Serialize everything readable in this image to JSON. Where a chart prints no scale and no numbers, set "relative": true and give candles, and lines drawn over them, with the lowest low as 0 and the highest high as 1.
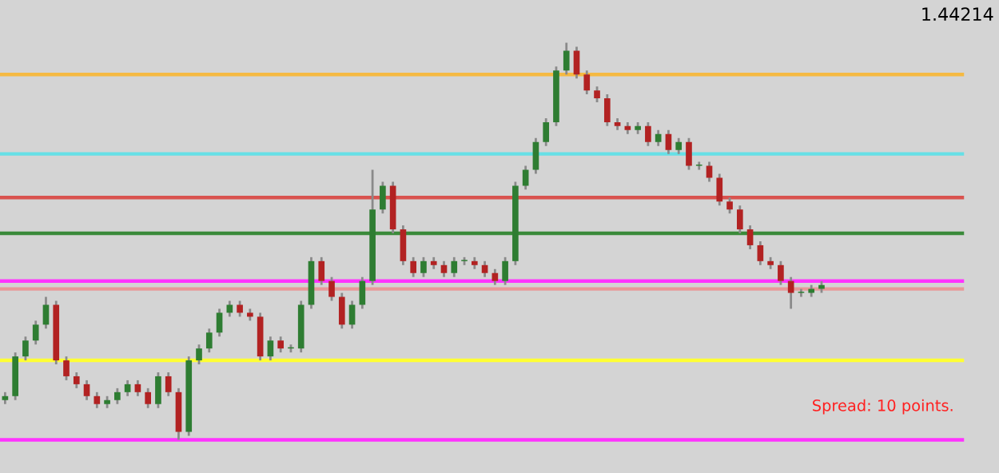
{
  "chart_data": {
    "type": "candlestick",
    "relative": true,
    "categories": [
      null,
      null,
      null,
      null,
      null,
      null,
      null,
      null,
      null,
      null,
      null,
      null,
      null,
      null,
      null,
      null,
      null,
      null,
      null,
      null,
      null,
      null,
      null,
      null,
      null,
      null,
      null,
      null,
      null,
      null,
      null,
      null,
      null,
      null,
      null,
      null,
      null,
      null,
      null,
      null,
      null,
      null,
      null,
      null,
      null,
      null,
      null,
      null,
      null,
      null,
      null,
      null,
      null,
      null,
      null,
      null,
      null,
      null,
      null,
      null,
      null,
      null,
      null,
      null,
      null,
      null,
      null,
      null,
      null,
      null,
      null,
      null,
      null,
      null,
      null,
      null,
      null,
      null,
      null,
      null,
      null
    ],
    "ohlc": [
      [
        0.1,
        0.12,
        0.09,
        0.11
      ],
      [
        0.11,
        0.22,
        0.1,
        0.21
      ],
      [
        0.21,
        0.26,
        0.2,
        0.25
      ],
      [
        0.25,
        0.3,
        0.24,
        0.29
      ],
      [
        0.29,
        0.36,
        0.28,
        0.34
      ],
      [
        0.34,
        0.35,
        0.19,
        0.2
      ],
      [
        0.2,
        0.21,
        0.15,
        0.16
      ],
      [
        0.16,
        0.17,
        0.13,
        0.14
      ],
      [
        0.14,
        0.15,
        0.1,
        0.11
      ],
      [
        0.11,
        0.12,
        0.08,
        0.09
      ],
      [
        0.09,
        0.11,
        0.08,
        0.1
      ],
      [
        0.1,
        0.13,
        0.09,
        0.12
      ],
      [
        0.12,
        0.15,
        0.11,
        0.14
      ],
      [
        0.14,
        0.15,
        0.11,
        0.12
      ],
      [
        0.12,
        0.13,
        0.08,
        0.09
      ],
      [
        0.09,
        0.17,
        0.08,
        0.16
      ],
      [
        0.16,
        0.17,
        0.11,
        0.12
      ],
      [
        0.12,
        0.13,
        0.0,
        0.02
      ],
      [
        0.02,
        0.21,
        0.01,
        0.2
      ],
      [
        0.2,
        0.24,
        0.19,
        0.23
      ],
      [
        0.23,
        0.28,
        0.22,
        0.27
      ],
      [
        0.27,
        0.33,
        0.26,
        0.32
      ],
      [
        0.32,
        0.35,
        0.31,
        0.34
      ],
      [
        0.34,
        0.35,
        0.31,
        0.32
      ],
      [
        0.32,
        0.33,
        0.3,
        0.31
      ],
      [
        0.31,
        0.32,
        0.2,
        0.21
      ],
      [
        0.21,
        0.26,
        0.2,
        0.25
      ],
      [
        0.25,
        0.26,
        0.22,
        0.23
      ],
      [
        0.23,
        0.24,
        0.22,
        0.23
      ],
      [
        0.23,
        0.35,
        0.22,
        0.34
      ],
      [
        0.34,
        0.46,
        0.33,
        0.45
      ],
      [
        0.45,
        0.46,
        0.39,
        0.4
      ],
      [
        0.4,
        0.41,
        0.35,
        0.36
      ],
      [
        0.36,
        0.37,
        0.28,
        0.29
      ],
      [
        0.29,
        0.35,
        0.28,
        0.34
      ],
      [
        0.34,
        0.41,
        0.33,
        0.4
      ],
      [
        0.4,
        0.68,
        0.39,
        0.58
      ],
      [
        0.58,
        0.65,
        0.57,
        0.64
      ],
      [
        0.64,
        0.65,
        0.52,
        0.53
      ],
      [
        0.53,
        0.54,
        0.44,
        0.45
      ],
      [
        0.45,
        0.46,
        0.41,
        0.42
      ],
      [
        0.42,
        0.46,
        0.41,
        0.45
      ],
      [
        0.45,
        0.46,
        0.43,
        0.44
      ],
      [
        0.44,
        0.45,
        0.41,
        0.42
      ],
      [
        0.42,
        0.46,
        0.41,
        0.45
      ],
      [
        0.45,
        0.46,
        0.44,
        0.45
      ],
      [
        0.45,
        0.46,
        0.43,
        0.44
      ],
      [
        0.44,
        0.45,
        0.41,
        0.42
      ],
      [
        0.42,
        0.43,
        0.39,
        0.4
      ],
      [
        0.4,
        0.46,
        0.39,
        0.45
      ],
      [
        0.45,
        0.65,
        0.44,
        0.64
      ],
      [
        0.64,
        0.69,
        0.63,
        0.68
      ],
      [
        0.68,
        0.76,
        0.67,
        0.75
      ],
      [
        0.75,
        0.81,
        0.74,
        0.8
      ],
      [
        0.8,
        0.94,
        0.79,
        0.93
      ],
      [
        0.93,
        1.0,
        0.92,
        0.98
      ],
      [
        0.98,
        0.99,
        0.91,
        0.92
      ],
      [
        0.92,
        0.93,
        0.87,
        0.88
      ],
      [
        0.88,
        0.89,
        0.85,
        0.86
      ],
      [
        0.86,
        0.87,
        0.79,
        0.8
      ],
      [
        0.8,
        0.81,
        0.78,
        0.79
      ],
      [
        0.79,
        0.8,
        0.77,
        0.78
      ],
      [
        0.78,
        0.8,
        0.77,
        0.79
      ],
      [
        0.79,
        0.8,
        0.74,
        0.75
      ],
      [
        0.75,
        0.78,
        0.74,
        0.77
      ],
      [
        0.77,
        0.78,
        0.72,
        0.73
      ],
      [
        0.73,
        0.76,
        0.72,
        0.75
      ],
      [
        0.75,
        0.76,
        0.68,
        0.69
      ],
      [
        0.69,
        0.7,
        0.68,
        0.69
      ],
      [
        0.69,
        0.7,
        0.65,
        0.66
      ],
      [
        0.66,
        0.67,
        0.59,
        0.6
      ],
      [
        0.6,
        0.61,
        0.57,
        0.58
      ],
      [
        0.58,
        0.59,
        0.52,
        0.53
      ],
      [
        0.53,
        0.54,
        0.48,
        0.49
      ],
      [
        0.49,
        0.5,
        0.44,
        0.45
      ],
      [
        0.45,
        0.46,
        0.43,
        0.44
      ],
      [
        0.44,
        0.45,
        0.39,
        0.4
      ],
      [
        0.4,
        0.41,
        0.33,
        0.37
      ],
      [
        0.37,
        0.38,
        0.36,
        0.37
      ],
      [
        0.37,
        0.39,
        0.36,
        0.38
      ],
      [
        0.38,
        0.4,
        0.37,
        0.39
      ]
    ],
    "ref_lines": [
      {
        "axis": "y",
        "value": 0.92,
        "color": "#f5b942"
      },
      {
        "axis": "y",
        "value": 0.72,
        "color": "#66e0e6"
      },
      {
        "axis": "y",
        "value": 0.61,
        "color": "#d9534f"
      },
      {
        "axis": "y",
        "value": 0.52,
        "color": "#3a8a3a"
      },
      {
        "axis": "y",
        "value": 0.4,
        "color": "#ff33ff"
      },
      {
        "axis": "y",
        "value": 0.38,
        "color": "#e89a9a"
      },
      {
        "axis": "y",
        "value": 0.2,
        "color": "#ffff33"
      },
      {
        "axis": "y",
        "value": 0.0,
        "color": "#ff33ff"
      }
    ],
    "annotations": [
      "1.44214",
      "Spread: 10 points."
    ]
  }
}
